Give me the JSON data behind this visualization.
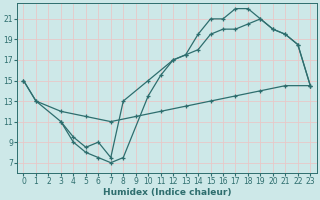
{
  "xlabel": "Humidex (Indice chaleur)",
  "xlim": [
    -0.5,
    23.5
  ],
  "ylim": [
    6,
    22.5
  ],
  "xticks": [
    0,
    1,
    2,
    3,
    4,
    5,
    6,
    7,
    8,
    9,
    10,
    11,
    12,
    13,
    14,
    15,
    16,
    17,
    18,
    19,
    20,
    21,
    22,
    23
  ],
  "yticks": [
    7,
    9,
    11,
    13,
    15,
    17,
    19,
    21
  ],
  "bg_color": "#cde8e8",
  "line_color": "#2e6e6e",
  "grid_color": "#b8d8d8",
  "lines": [
    {
      "x": [
        0,
        1,
        3,
        5,
        7,
        9,
        11,
        13,
        15,
        17,
        19,
        21,
        23
      ],
      "y": [
        15,
        13,
        12,
        11.5,
        11,
        11.5,
        12,
        12.5,
        13,
        13.5,
        14,
        14.5,
        14.5
      ]
    },
    {
      "x": [
        0,
        1,
        3,
        4,
        5,
        6,
        7,
        8,
        10,
        12,
        13,
        14,
        15,
        16,
        17,
        18,
        19,
        20,
        21,
        22,
        23
      ],
      "y": [
        15,
        13,
        11,
        9.5,
        8.5,
        9,
        7.5,
        13,
        15,
        17,
        17.5,
        18,
        19.5,
        20,
        20,
        20.5,
        21,
        20,
        19.5,
        18.5,
        14.5
      ]
    },
    {
      "x": [
        3,
        4,
        5,
        6,
        7,
        8,
        10,
        11,
        12,
        13,
        14,
        15,
        16,
        17,
        18,
        19,
        20,
        21,
        22,
        23
      ],
      "y": [
        11,
        9,
        8,
        7.5,
        7,
        7.5,
        13.5,
        15.5,
        17,
        17.5,
        19.5,
        21,
        21,
        22,
        22,
        21,
        20,
        19.5,
        18.5,
        14.5
      ]
    }
  ]
}
